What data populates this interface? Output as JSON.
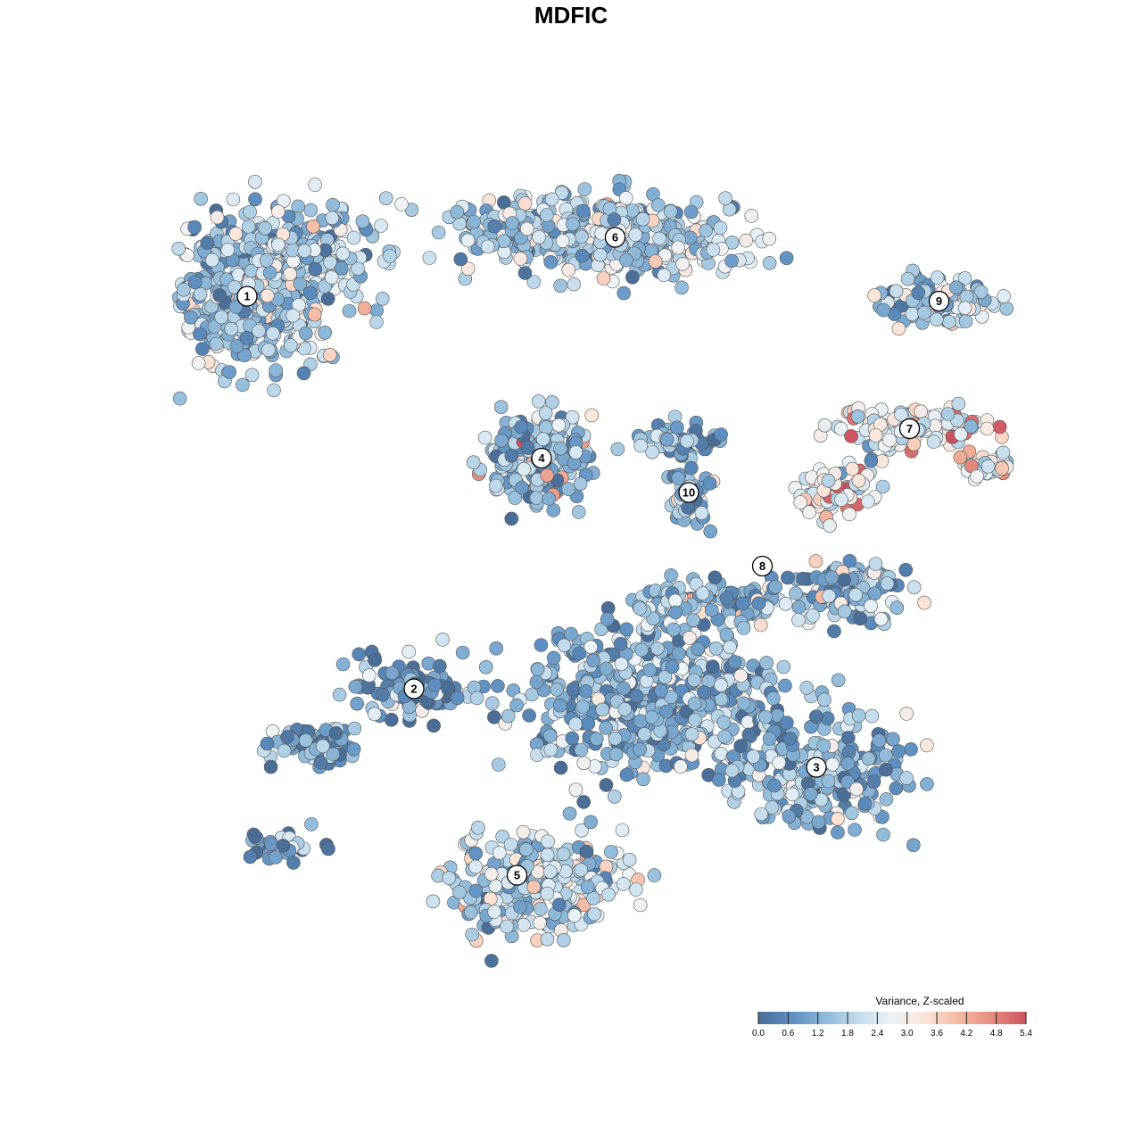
{
  "chart_data": {
    "type": "scatter",
    "title": "MDFIC",
    "xlabel": "",
    "ylabel": "",
    "grid": false,
    "axes_visible": false,
    "color_scale": {
      "title": "Variance, Z-scaled",
      "min": 0.0,
      "max": 5.4,
      "ticks": [
        "0.0",
        "0.6",
        "1.2",
        "1.8",
        "2.4",
        "3.0",
        "3.6",
        "4.2",
        "4.8",
        "5.4"
      ],
      "colors": [
        "#4a6e98",
        "#5b8ec1",
        "#8db9d9",
        "#c3dcec",
        "#eef3f7",
        "#fbe4d8",
        "#f4b9a0",
        "#e58b7c",
        "#cc5260"
      ],
      "placement": "bottom-right"
    },
    "clusters": [
      {
        "id": "1",
        "x": -6.6,
        "y": 5.6,
        "mean_value": 1.6,
        "hotspot": 3.4
      },
      {
        "id": "2",
        "x": -3.2,
        "y": -2.4,
        "mean_value": 0.8,
        "hotspot": 2.8
      },
      {
        "id": "3",
        "x": 5.0,
        "y": -4.0,
        "mean_value": 1.2,
        "hotspot": 2.8
      },
      {
        "id": "4",
        "x": -0.6,
        "y": 2.3,
        "mean_value": 1.4,
        "hotspot": 4.4
      },
      {
        "id": "5",
        "x": -1.1,
        "y": -6.2,
        "mean_value": 1.8,
        "hotspot": 3.6
      },
      {
        "id": "6",
        "x": 0.9,
        "y": 6.8,
        "mean_value": 1.7,
        "hotspot": 3.2
      },
      {
        "id": "7",
        "x": 6.9,
        "y": 2.9,
        "mean_value": 2.6,
        "hotspot": 5.0
      },
      {
        "id": "8",
        "x": 3.9,
        "y": 0.1,
        "mean_value": 1.3,
        "hotspot": 3.3
      },
      {
        "id": "9",
        "x": 7.5,
        "y": 5.5,
        "mean_value": 1.6,
        "hotspot": 3.3
      },
      {
        "id": "10",
        "x": 2.4,
        "y": 1.6,
        "mean_value": 1.2,
        "hotspot": 3.0
      }
    ]
  }
}
